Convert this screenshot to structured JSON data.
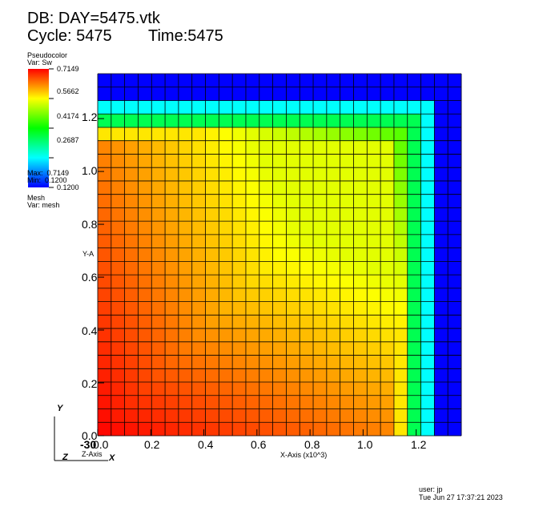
{
  "header": {
    "db_line": "DB: DAY=5475.vtk",
    "cycle_line": "Cycle: 5475",
    "time_line": "Time:5475"
  },
  "legend": {
    "plot_type": "Pseudocolor",
    "var_label": "Var: Sw",
    "ticks": [
      "0.7149",
      "0.5662",
      "0.4174",
      "0.2687",
      "0.1200"
    ],
    "max_label": "Max:  0.7149",
    "min_label": "Min:  0.1200",
    "mesh_plot": "Mesh",
    "mesh_var": "Var: mesh"
  },
  "axes": {
    "x_title": "X-Axis (x10^3)",
    "y_title": "Y-A",
    "z_title": "Z-Axis",
    "x_ticks": [
      "0.0",
      "0.2",
      "0.4",
      "0.6",
      "0.8",
      "1.0",
      "1.2"
    ],
    "y_ticks": [
      "0.0",
      "0.2",
      "0.4",
      "0.6",
      "0.8",
      "1.0",
      "1.2"
    ],
    "x_offset_label": "-30",
    "triad": {
      "y": "Y",
      "z": "Z",
      "x": "X"
    }
  },
  "footer": {
    "user": "user: jp",
    "date": "Tue Jun 27 17:37:21 2023"
  },
  "chart_data": {
    "type": "heatmap",
    "variable": "Sw",
    "colorbar_range": [
      0.12,
      0.7149
    ],
    "xlim": [
      0,
      1.37
    ],
    "ylim": [
      0,
      1.37
    ],
    "grid_cells": [
      27,
      27
    ],
    "description_of_field": "saturation front from lower-left, high (~0.71) near origin decreasing to 0.12 at top and right edges",
    "x_ticks": [
      0.0,
      0.2,
      0.4,
      0.6,
      0.8,
      1.0,
      1.2
    ],
    "y_ticks": [
      0.0,
      0.2,
      0.4,
      0.6,
      0.8,
      1.0,
      1.2
    ]
  }
}
